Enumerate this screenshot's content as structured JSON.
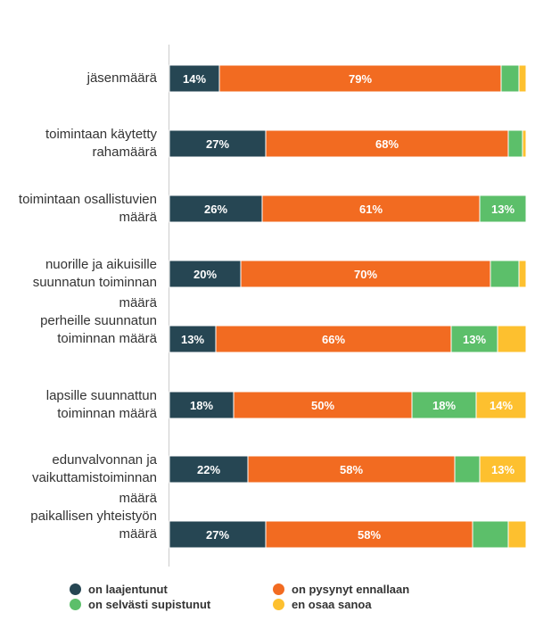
{
  "chart_data": {
    "type": "bar",
    "orientation": "horizontal",
    "stacked": true,
    "categories": [
      [
        "jäsenmäärä"
      ],
      [
        "toimintaan käytetty",
        "rahamäärä"
      ],
      [
        "toimintaan osallistuvien",
        "määrä"
      ],
      [
        "nuorille ja aikuisille",
        "suunnatun toiminnan"
      ],
      [
        "määrä",
        "perheille suunnatun",
        "toiminnan määrä"
      ],
      [
        "lapsille suunnattun",
        "toiminnan määrä"
      ],
      [
        "edunvalvonnan ja",
        "vaikuttamistoiminnan"
      ],
      [
        "määrä",
        "paikallisen yhteistyön",
        "määrä"
      ]
    ],
    "series": [
      {
        "name": "on laajentunut",
        "color": "#264653",
        "values": [
          14,
          27,
          26,
          20,
          13,
          18,
          22,
          27
        ]
      },
      {
        "name": "on pysynyt ennallaan",
        "color": "#F26B21",
        "values": [
          79,
          68,
          61,
          70,
          66,
          50,
          58,
          58
        ]
      },
      {
        "name": "on selvästi supistunut",
        "color": "#5CBF6A",
        "values": [
          5,
          4,
          13,
          8,
          13,
          18,
          7,
          10
        ]
      },
      {
        "name": "en osaa sanoa",
        "color": "#FDC02F",
        "values": [
          2,
          1,
          0,
          2,
          8,
          14,
          13,
          5
        ]
      }
    ],
    "data_labels": [
      [
        "14%",
        "79%",
        "",
        ""
      ],
      [
        "27%",
        "68%",
        "",
        ""
      ],
      [
        "26%",
        "61%",
        "13%",
        ""
      ],
      [
        "20%",
        "70%",
        "",
        ""
      ],
      [
        "13%",
        "66%",
        "13%",
        ""
      ],
      [
        "18%",
        "50%",
        "18%",
        "14%"
      ],
      [
        "22%",
        "58%",
        "",
        "13%"
      ],
      [
        "27%",
        "58%",
        "",
        ""
      ]
    ],
    "xlim": [
      0,
      100
    ],
    "grid": false,
    "legend_position": "bottom"
  }
}
